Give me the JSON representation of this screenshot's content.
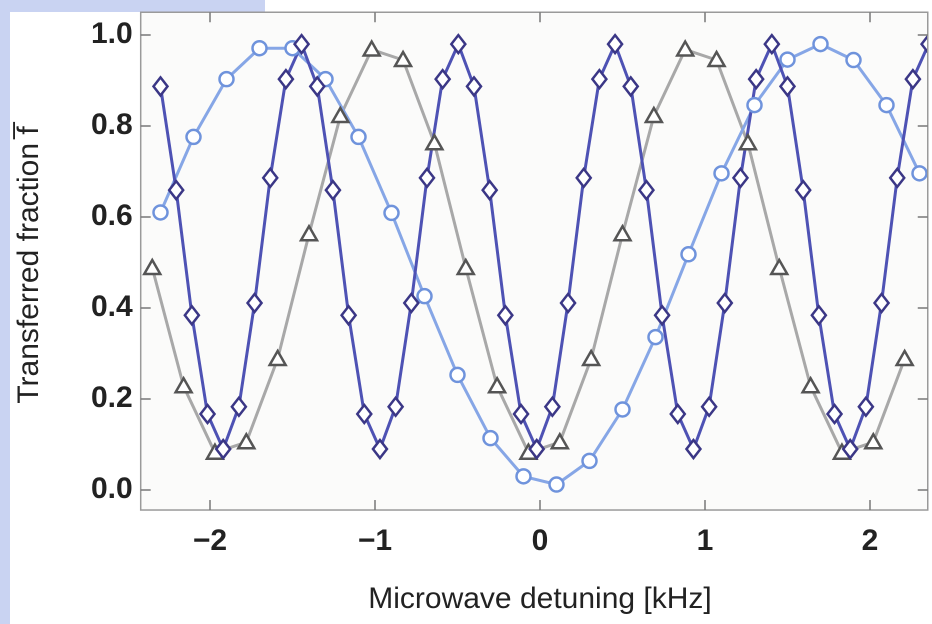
{
  "chart_data": {
    "type": "scatter",
    "xlabel": "Microwave detuning [kHz]",
    "ylabel": "Transferred fraction f̅",
    "xlim": [
      -2.42,
      2.35
    ],
    "ylim": [
      -0.044,
      1.05
    ],
    "xticks": [
      {
        "value": -2,
        "label": "−2"
      },
      {
        "value": -1,
        "label": "−1"
      },
      0,
      1,
      2
    ],
    "yticks": [
      {
        "value": 0,
        "label": "0.0"
      },
      0.2,
      0.4,
      0.6,
      0.8,
      {
        "value": 1,
        "label": "1.0"
      }
    ],
    "series": [
      {
        "marker": "triangle",
        "color": "#555555",
        "line_color": "#a8a8a8",
        "x": [
          -2.35,
          -2.16,
          -1.97,
          -1.78,
          -1.59,
          -1.4,
          -1.21,
          -1.02,
          -0.83,
          -0.64,
          -0.45,
          -0.26,
          -0.07,
          0.12,
          0.31,
          0.5,
          0.69,
          0.88,
          1.07,
          1.26,
          1.45,
          1.64,
          1.83,
          2.02,
          2.21
        ],
        "values": [
          0.488,
          0.228,
          0.082,
          0.105,
          0.288,
          0.562,
          0.822,
          0.968,
          0.945,
          0.762,
          0.488,
          0.228,
          0.082,
          0.105,
          0.288,
          0.562,
          0.822,
          0.968,
          0.945,
          0.762,
          0.488,
          0.228,
          0.082,
          0.105,
          0.288
        ]
      },
      {
        "marker": "circle",
        "color": "#6f93dc",
        "line_color": "#86a6e6",
        "x": [
          -2.3,
          -2.1,
          -1.9,
          -1.7,
          -1.5,
          -1.3,
          -1.1,
          -0.9,
          -0.7,
          -0.5,
          -0.3,
          -0.1,
          0.1,
          0.3,
          0.5,
          0.7,
          0.9,
          1.1,
          1.3,
          1.5,
          1.7,
          1.9,
          2.1,
          2.3
        ],
        "values": [
          0.61,
          0.776,
          0.903,
          0.971,
          0.971,
          0.903,
          0.776,
          0.609,
          0.426,
          0.253,
          0.114,
          0.03,
          0.012,
          0.064,
          0.177,
          0.336,
          0.518,
          0.696,
          0.846,
          0.946,
          0.98,
          0.945,
          0.846,
          0.696
        ]
      },
      {
        "marker": "diamond",
        "color": "#3b3786",
        "line_color": "#4e52b4",
        "x": [
          -2.3,
          -2.205,
          -2.11,
          -2.015,
          -1.92,
          -1.825,
          -1.73,
          -1.635,
          -1.54,
          -1.445,
          -1.35,
          -1.255,
          -1.16,
          -1.065,
          -0.97,
          -0.875,
          -0.78,
          -0.685,
          -0.59,
          -0.495,
          -0.4,
          -0.305,
          -0.21,
          -0.115,
          -0.02,
          0.075,
          0.17,
          0.265,
          0.36,
          0.455,
          0.55,
          0.645,
          0.74,
          0.835,
          0.93,
          1.025,
          1.12,
          1.215,
          1.31,
          1.405,
          1.5,
          1.595,
          1.69,
          1.785,
          1.88,
          1.975,
          2.07,
          2.165,
          2.26,
          2.355
        ],
        "values": [
          0.887,
          0.659,
          0.384,
          0.167,
          0.09,
          0.183,
          0.411,
          0.686,
          0.903,
          0.98,
          0.887,
          0.659,
          0.384,
          0.167,
          0.09,
          0.183,
          0.411,
          0.686,
          0.903,
          0.98,
          0.887,
          0.659,
          0.384,
          0.167,
          0.09,
          0.183,
          0.411,
          0.686,
          0.903,
          0.98,
          0.887,
          0.659,
          0.384,
          0.167,
          0.09,
          0.183,
          0.411,
          0.686,
          0.903,
          0.98,
          0.887,
          0.659,
          0.384,
          0.167,
          0.09,
          0.183,
          0.411,
          0.686,
          0.903,
          0.98
        ]
      }
    ]
  }
}
